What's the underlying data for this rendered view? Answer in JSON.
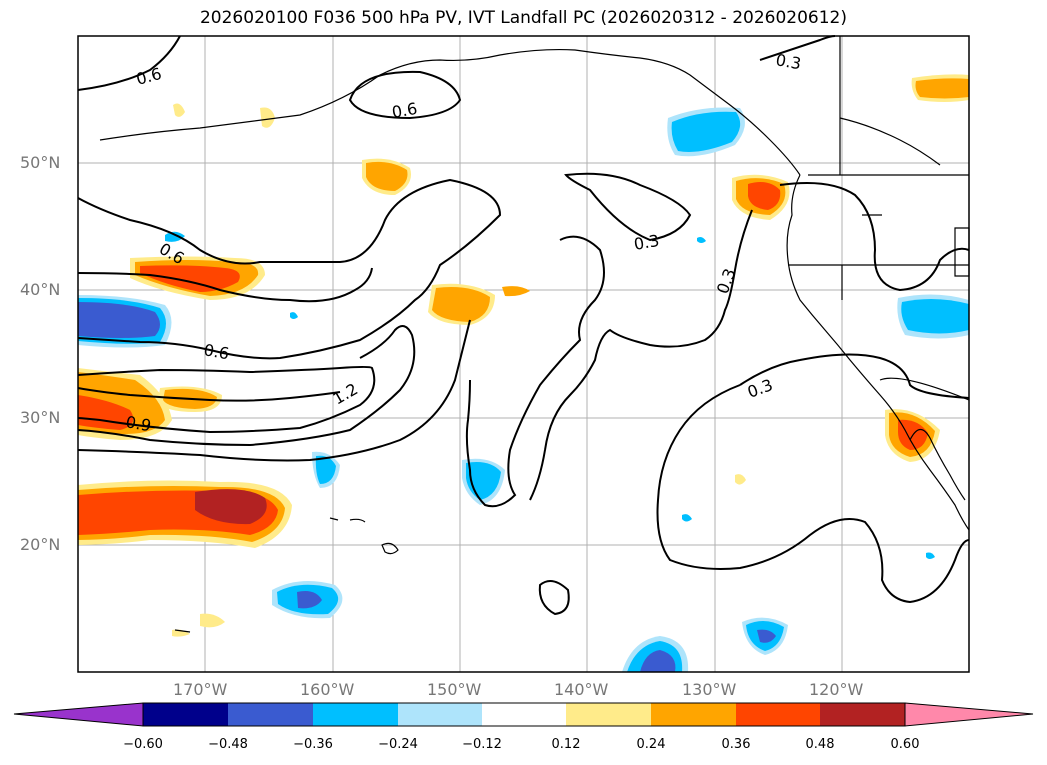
{
  "title": "2026020100 F036 500 hPa PV, IVT Landfall PC (2026020312 - 2026020612)",
  "axes": {
    "lon_labels": [
      "170°W",
      "160°W",
      "150°W",
      "140°W",
      "130°W",
      "120°W"
    ],
    "lat_labels": [
      "50°N",
      "40°N",
      "30°N",
      "20°N"
    ]
  },
  "contour_labels": [
    "0.6",
    "0.6",
    "0.6",
    "0.6",
    "0.9",
    "1.2",
    "0.3",
    "0.3",
    "0.3",
    "0.3"
  ],
  "colorbar": {
    "ticks": [
      "−0.60",
      "−0.48",
      "−0.36",
      "−0.24",
      "−0.12",
      "0.12",
      "0.24",
      "0.36",
      "0.48",
      "0.60"
    ],
    "colors": [
      "#9933cc",
      "#00008b",
      "#3a5bd0",
      "#00bfff",
      "#aee4fb",
      "#ffffff",
      "#ffeb8a",
      "#ffa500",
      "#ff4500",
      "#b22222",
      "#ff88aa"
    ]
  },
  "chart_data": {
    "type": "heatmap",
    "title": "2026020100 F036 500 hPa PV, IVT Landfall PC (2026020312 - 2026020612)",
    "x_range": [
      -180,
      -110
    ],
    "y_range": [
      10,
      60
    ],
    "x_ticks": [
      -170,
      -160,
      -150,
      -140,
      -130,
      -120
    ],
    "y_ticks": [
      50,
      40,
      30,
      20
    ],
    "contour_levels": [
      0.3,
      0.6,
      0.9,
      1.2
    ],
    "colorbar_bounds": [
      -0.6,
      -0.48,
      -0.36,
      -0.24,
      -0.12,
      0.12,
      0.24,
      0.36,
      0.48,
      0.6
    ],
    "grid": true
  }
}
